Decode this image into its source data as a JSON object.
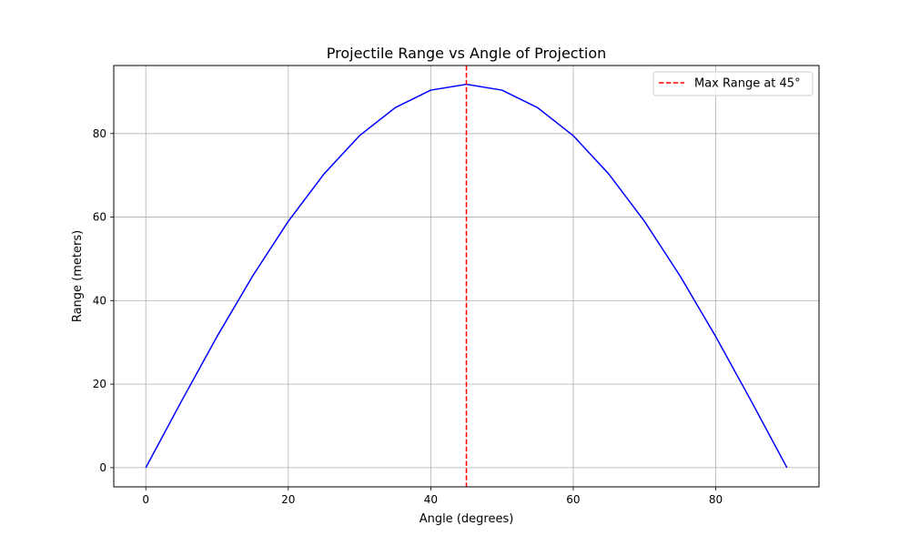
{
  "chart_data": {
    "type": "line",
    "title": "Projectile Range vs Angle of Projection",
    "xlabel": "Angle (degrees)",
    "ylabel": "Range (meters)",
    "xlim": [
      -4.5,
      94.5
    ],
    "ylim": [
      -4.6,
      96.3
    ],
    "xticks": [
      0,
      20,
      40,
      60,
      80
    ],
    "yticks": [
      0,
      20,
      40,
      60,
      80
    ],
    "grid": true,
    "legend_position": "top-right",
    "series": [
      {
        "name": "",
        "color": "#0000ff",
        "style": "solid",
        "x": [
          0,
          5,
          10,
          15,
          20,
          25,
          30,
          35,
          40,
          45,
          50,
          55,
          60,
          65,
          70,
          75,
          80,
          85,
          90
        ],
        "y": [
          0,
          15.9,
          31.4,
          45.9,
          59.0,
          70.3,
          79.5,
          86.2,
          90.4,
          91.8,
          90.4,
          86.2,
          79.5,
          70.3,
          59.0,
          45.9,
          31.4,
          15.9,
          0
        ]
      }
    ],
    "reference_lines": [
      {
        "orientation": "vertical",
        "x": 45,
        "color": "#ff0000",
        "style": "dashed",
        "label": "Max Range at 45°"
      }
    ]
  }
}
